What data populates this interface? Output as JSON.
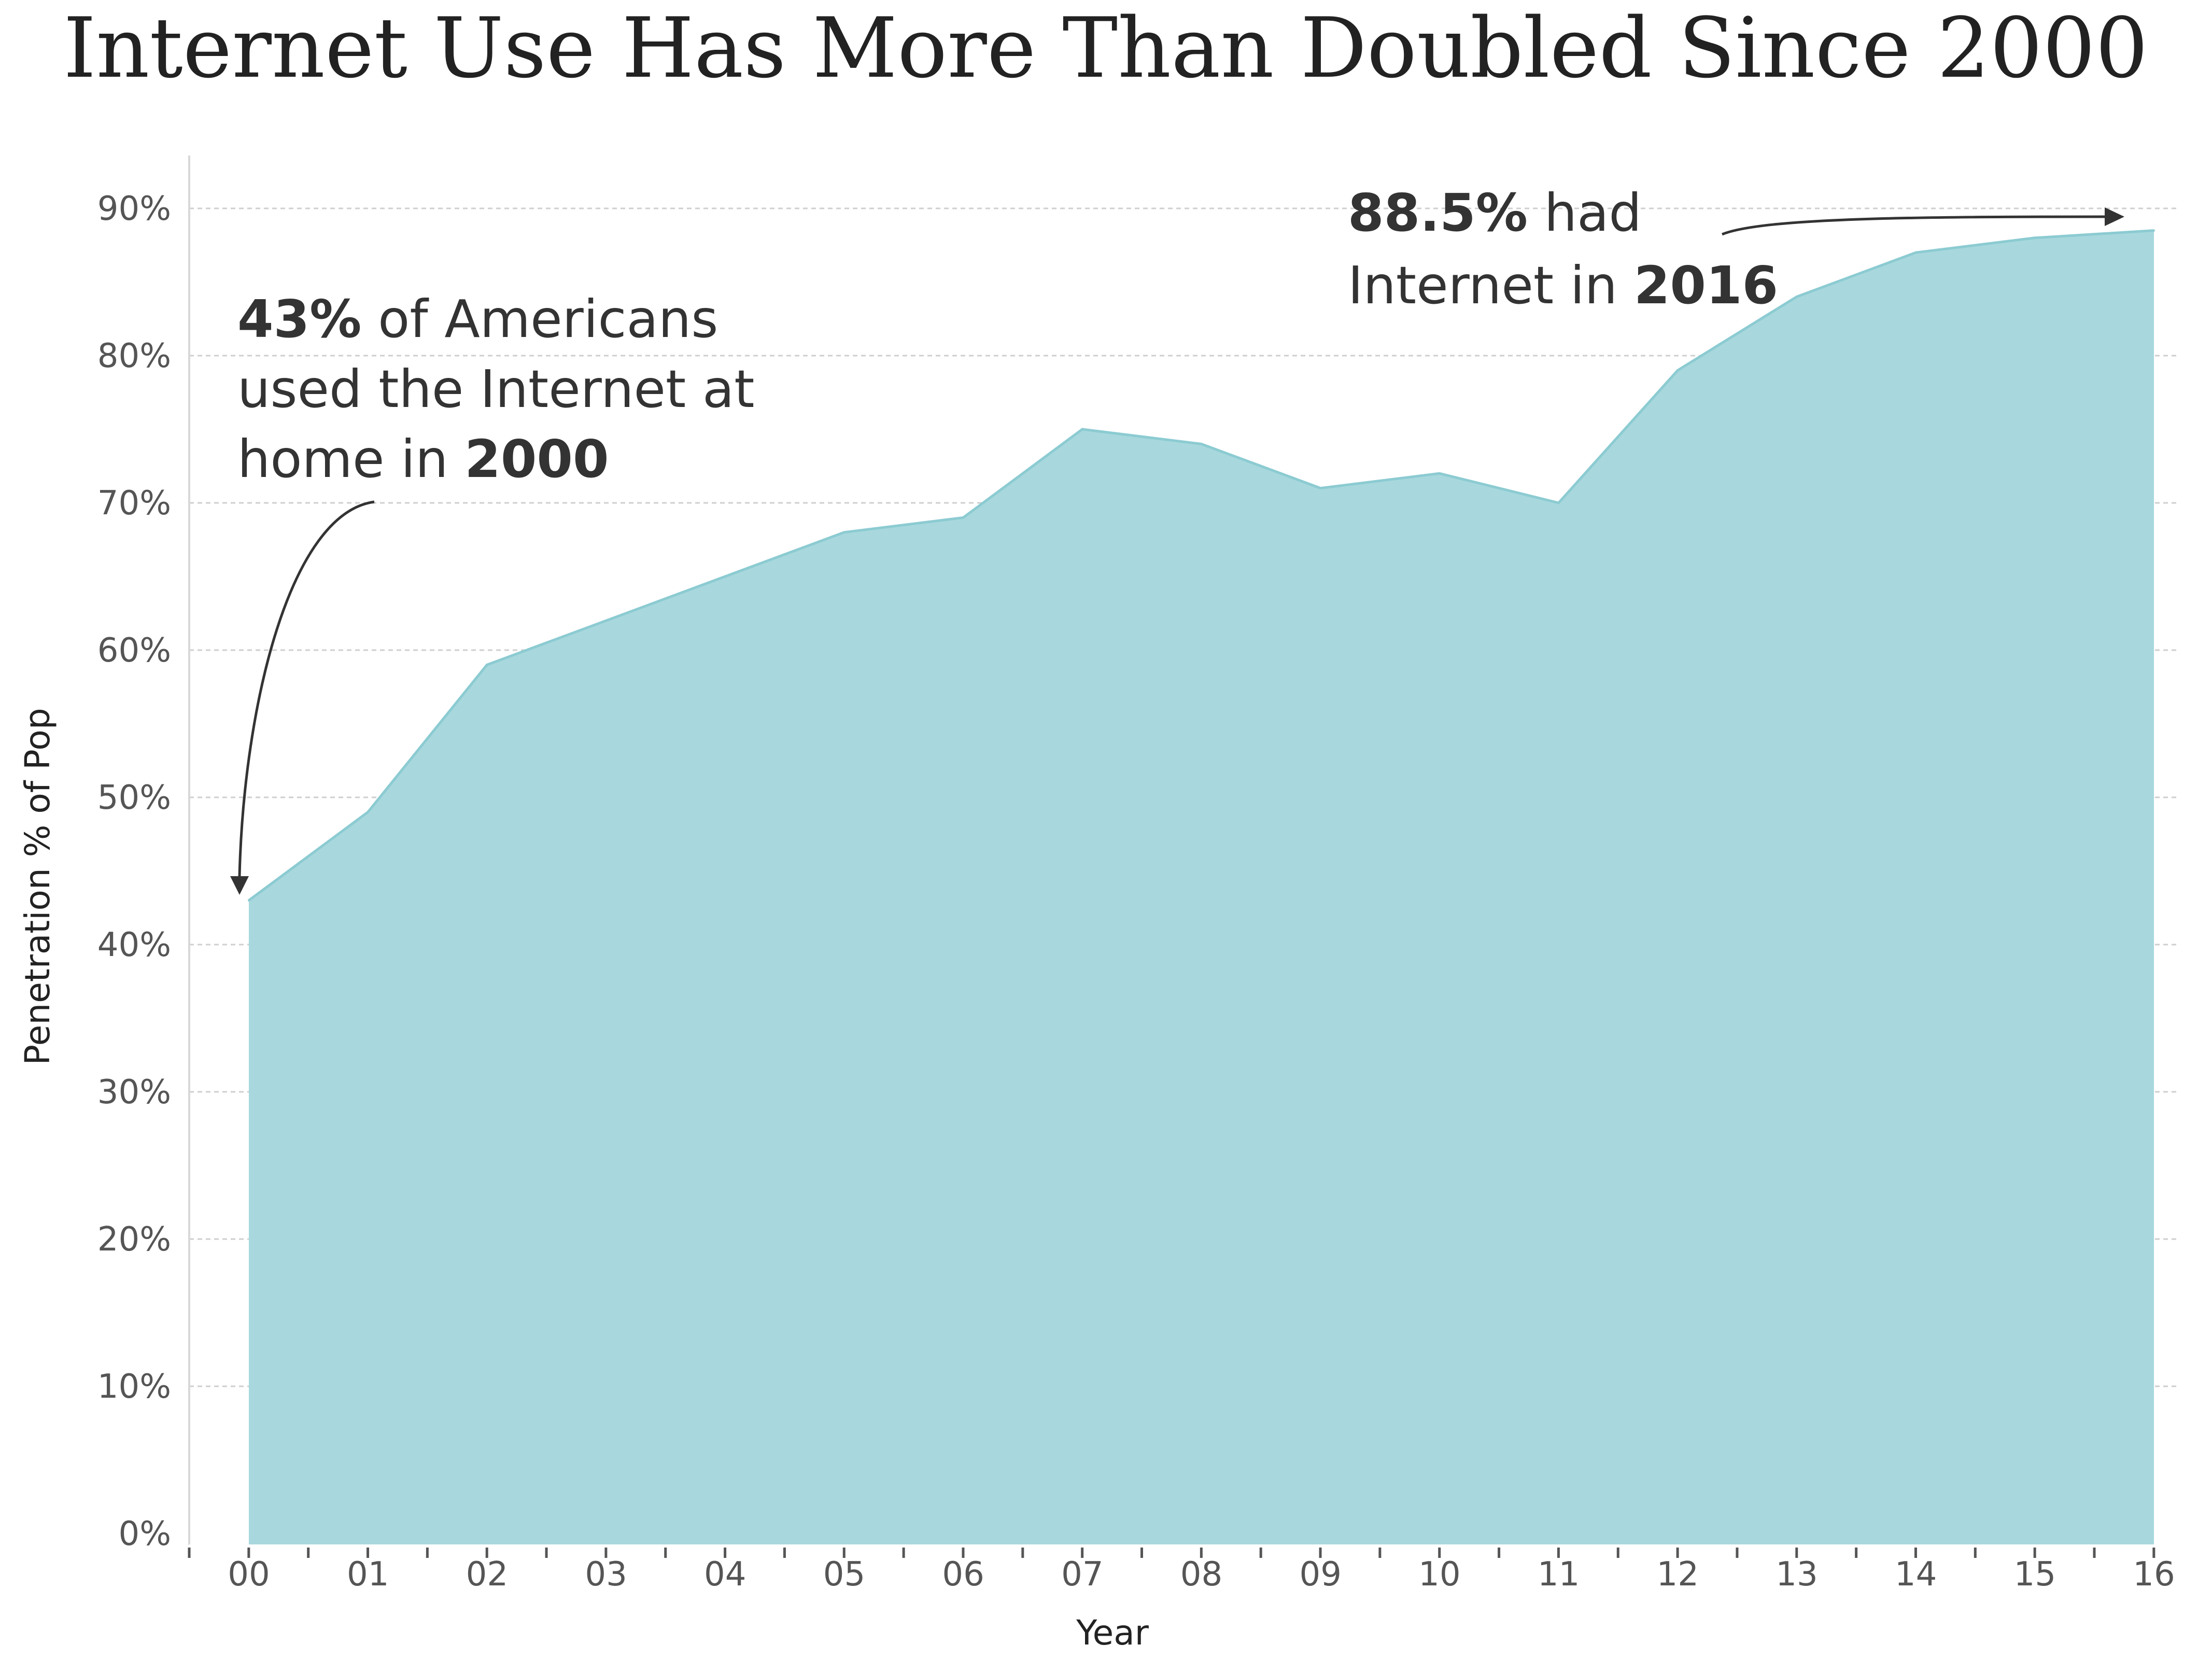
{
  "chart_data": {
    "type": "area",
    "title": "Internet Use Has More Than Doubled Since 2000",
    "xlabel": "Year",
    "ylabel": "Penetration % of Pop",
    "categories": [
      "00",
      "01",
      "02",
      "03",
      "04",
      "05",
      "06",
      "07",
      "08",
      "09",
      "10",
      "11",
      "12",
      "13",
      "14",
      "15",
      "16"
    ],
    "values": [
      43,
      49,
      59,
      62,
      65,
      68,
      69,
      75,
      74,
      71,
      72,
      70,
      79,
      84,
      87,
      88,
      88.5
    ],
    "ylim": [
      0,
      90
    ],
    "yticks": [
      "0%",
      "10%",
      "20%",
      "30%",
      "40%",
      "50%",
      "60%",
      "70%",
      "80%",
      "90%"
    ],
    "grid": true,
    "legend": "none",
    "fill_color": "#a8d8dd",
    "line_color": "#8ccbd2",
    "annotations": {
      "start": {
        "lines": [
          [
            {
              "t": "43%",
              "b": true
            },
            {
              "t": " of Americans",
              "b": false
            }
          ],
          [
            {
              "t": "used the Internet at",
              "b": false
            }
          ],
          [
            {
              "t": "home in ",
              "b": false
            },
            {
              "t": "2000",
              "b": true
            }
          ]
        ]
      },
      "end": {
        "lines": [
          [
            {
              "t": "88.5%",
              "b": true
            },
            {
              "t": " had",
              "b": false
            }
          ],
          [
            {
              "t": "Internet in ",
              "b": false
            },
            {
              "t": "2016",
              "b": true
            }
          ]
        ]
      }
    }
  }
}
